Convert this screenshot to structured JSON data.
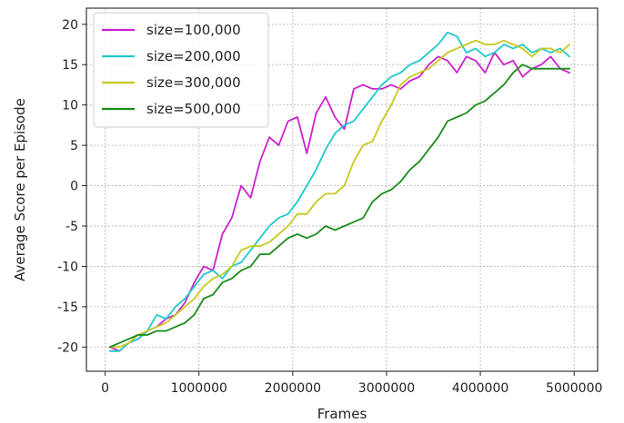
{
  "chart_data": {
    "type": "line",
    "title": "",
    "xlabel": "Frames",
    "ylabel": "Average Score per Episode",
    "xlim": [
      -200000,
      5250000
    ],
    "ylim": [
      -23,
      22
    ],
    "xticks": [
      0,
      1000000,
      2000000,
      3000000,
      4000000,
      5000000
    ],
    "xtick_labels": [
      "0",
      "1000000",
      "2000000",
      "3000000",
      "4000000",
      "5000000"
    ],
    "yticks": [
      -20,
      -15,
      -10,
      -5,
      0,
      5,
      10,
      15,
      20
    ],
    "ytick_labels": [
      "-20",
      "-15",
      "-10",
      "-5",
      "0",
      "5",
      "10",
      "15",
      "20"
    ],
    "grid": true,
    "legend": "top-left",
    "x": [
      50000,
      150000,
      250000,
      350000,
      450000,
      550000,
      650000,
      750000,
      850000,
      950000,
      1050000,
      1150000,
      1250000,
      1350000,
      1450000,
      1550000,
      1650000,
      1750000,
      1850000,
      1950000,
      2050000,
      2150000,
      2250000,
      2350000,
      2450000,
      2550000,
      2650000,
      2750000,
      2850000,
      2950000,
      3050000,
      3150000,
      3250000,
      3350000,
      3450000,
      3550000,
      3650000,
      3750000,
      3850000,
      3950000,
      4050000,
      4150000,
      4250000,
      4350000,
      4450000,
      4550000,
      4650000,
      4750000,
      4850000,
      4950000
    ],
    "series": [
      {
        "name": "size=100,000",
        "color": "#cc22cc",
        "values": [
          -20,
          -20.5,
          -19.5,
          -19,
          -18,
          -17.5,
          -16.5,
          -16,
          -14.5,
          -12,
          -10,
          -10.5,
          -6,
          -4,
          0,
          -1.5,
          3,
          6,
          5,
          8,
          8.5,
          4,
          9,
          11,
          8.5,
          7,
          12,
          12.5,
          12,
          12,
          12.5,
          12,
          13,
          13.5,
          15,
          16,
          15.5,
          14,
          16,
          15.5,
          14,
          16.5,
          15,
          15.5,
          13.5,
          14.5,
          15,
          16,
          14.5,
          14
        ]
      },
      {
        "name": "size=200,000",
        "color": "#1fc8cc",
        "values": [
          -20.5,
          -20.5,
          -19.5,
          -19,
          -18,
          -16,
          -16.5,
          -15,
          -14,
          -12.5,
          -11,
          -10.5,
          -11.5,
          -10,
          -9.5,
          -8,
          -6.5,
          -5,
          -4,
          -3.5,
          -2,
          0,
          2,
          4.5,
          6.5,
          7.5,
          8,
          9.5,
          11,
          12.5,
          13.5,
          14,
          15,
          15.5,
          16.5,
          17.5,
          19,
          18.5,
          16.5,
          17,
          16,
          16.5,
          17.5,
          17,
          17.5,
          16.5,
          17,
          16.5,
          17,
          16
        ]
      },
      {
        "name": "size=300,000",
        "color": "#c8c81f",
        "values": [
          -20,
          -20,
          -19.5,
          -18.5,
          -18,
          -17.5,
          -17,
          -16,
          -15,
          -14,
          -12.5,
          -11.5,
          -11,
          -10,
          -8,
          -7.5,
          -7.5,
          -7,
          -6,
          -5,
          -3.5,
          -3.5,
          -2,
          -1,
          -1,
          0,
          3,
          5,
          5.5,
          8,
          10,
          12.5,
          13.5,
          14,
          14.5,
          15.5,
          16.5,
          17,
          17.5,
          18,
          17.5,
          17.5,
          18,
          17.5,
          17,
          16,
          17,
          17,
          16.5,
          17.5
        ]
      },
      {
        "name": "size=500,000",
        "color": "#1a8c1a",
        "values": [
          -20,
          -19.5,
          -19,
          -18.5,
          -18.5,
          -18,
          -18,
          -17.5,
          -17,
          -16,
          -14,
          -13.5,
          -12,
          -11.5,
          -10.5,
          -10,
          -8.5,
          -8.5,
          -7.5,
          -6.5,
          -6,
          -6.5,
          -6,
          -5,
          -5.5,
          -5,
          -4.5,
          -4,
          -2,
          -1,
          -0.5,
          0.5,
          2,
          3,
          4.5,
          6,
          8,
          8.5,
          9,
          10,
          10.5,
          11.5,
          12.5,
          14,
          15,
          14.5,
          14.5,
          14.5,
          14.5,
          14.5
        ]
      }
    ]
  }
}
